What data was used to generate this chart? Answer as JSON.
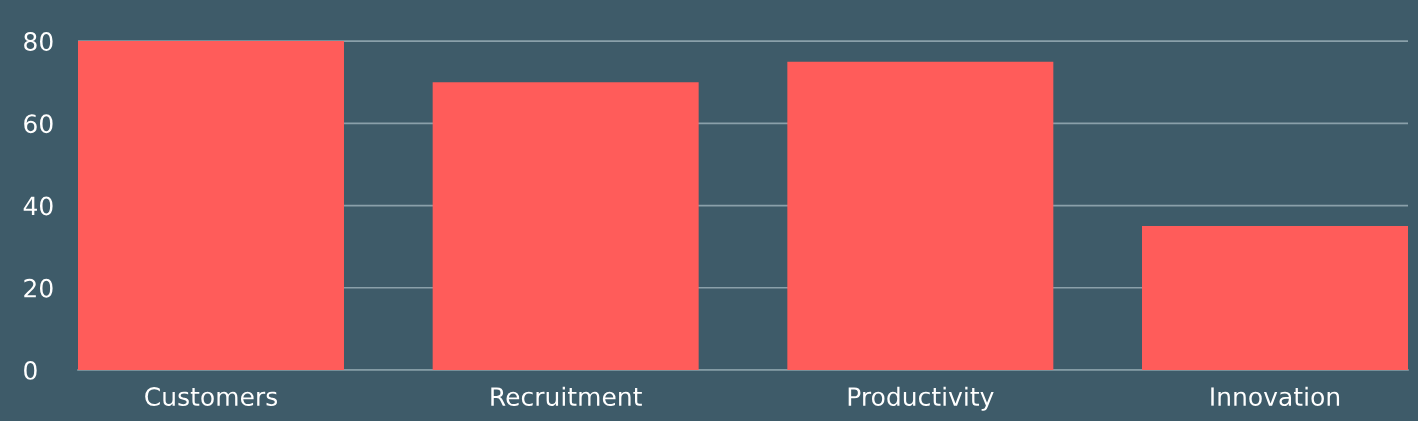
{
  "chart_data": {
    "type": "bar",
    "categories": [
      "Customers",
      "Recruitment",
      "Productivity",
      "Innovation"
    ],
    "values": [
      80,
      70,
      75,
      35
    ],
    "color": "#ff5c5a",
    "ylim": [
      0,
      90
    ],
    "yticks": [
      0,
      20,
      40,
      60,
      80
    ],
    "grid": "y",
    "legend": false
  }
}
